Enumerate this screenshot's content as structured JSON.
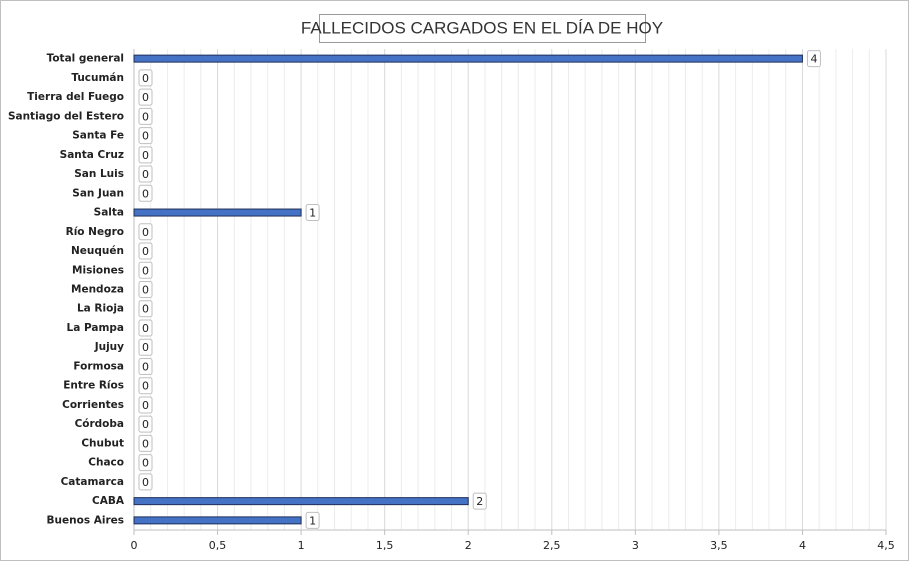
{
  "chart_data": {
    "type": "bar",
    "orientation": "horizontal",
    "title": "FALLECIDOS CARGADOS EN EL DÍA DE HOY",
    "categories": [
      "Total general",
      "Tucumán",
      "Tierra del Fuego",
      "Santiago del Estero",
      "Santa Fe",
      "Santa Cruz",
      "San Luis",
      "San Juan",
      "Salta",
      "Río Negro",
      "Neuquén",
      "Misiones",
      "Mendoza",
      "La Rioja",
      "La Pampa",
      "Jujuy",
      "Formosa",
      "Entre Ríos",
      "Corrientes",
      "Córdoba",
      "Chubut",
      "Chaco",
      "Catamarca",
      "CABA",
      "Buenos Aires"
    ],
    "values": [
      4,
      0,
      0,
      0,
      0,
      0,
      0,
      0,
      1,
      0,
      0,
      0,
      0,
      0,
      0,
      0,
      0,
      0,
      0,
      0,
      0,
      0,
      0,
      2,
      1
    ],
    "color": "#4472c4",
    "xlim": [
      0,
      4.5
    ],
    "xticks": [
      0,
      {
        "value": 0.5,
        "label": "0,5"
      },
      1,
      {
        "value": 1.5,
        "label": "1,5"
      },
      2,
      {
        "value": 2.5,
        "label": "2,5"
      },
      3,
      {
        "value": 3.5,
        "label": "3,5"
      },
      4,
      {
        "value": 4.5,
        "label": "4,5"
      }
    ],
    "grid": true
  }
}
